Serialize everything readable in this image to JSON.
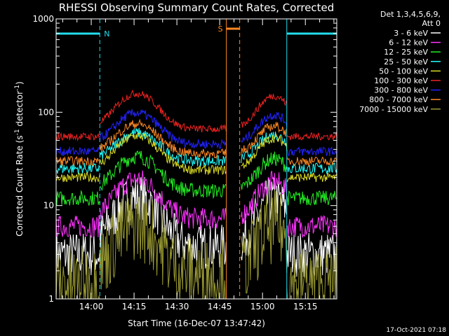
{
  "chart_data": {
    "type": "line",
    "title": "RHESSI Observing Summary Count Rates, Corrected",
    "xlabel": "Start Time (16-Dec-07 13:47:42)",
    "ylabel": "Corrected Count Rate (s⁻¹ detector⁻¹)",
    "ylabel_parts": {
      "main": "Corrected Count Rate (s",
      "exp1": "-1",
      "mid": " detector",
      "exp2": "-1",
      "end": ")"
    },
    "yscale": "log",
    "ylim": [
      1,
      1000
    ],
    "xlim": [
      "13:47:42",
      "15:26:00"
    ],
    "xticks": [
      "14:00",
      "14:15",
      "14:30",
      "14:45",
      "15:00",
      "15:15"
    ],
    "yticks": [
      "1",
      "10",
      "100",
      "1000"
    ],
    "legend_header": [
      "Det 1,3,4,5,6,9,",
      "Att 0"
    ],
    "series": [
      {
        "name": "3 - 6 keV",
        "color": "#ffffff"
      },
      {
        "name": "6 - 12 keV",
        "color": "#ff33ff"
      },
      {
        "name": "12 - 25 keV",
        "color": "#22ee22"
      },
      {
        "name": "25 - 50 keV",
        "color": "#22ffff"
      },
      {
        "name": "50 - 100 keV",
        "color": "#dddd22"
      },
      {
        "name": "100 - 300 keV",
        "color": "#ee2222"
      },
      {
        "name": "300 - 800 keV",
        "color": "#2222ff"
      },
      {
        "name": "800 - 7000 keV",
        "color": "#ff8822"
      },
      {
        "name": "7000 - 15000 keV",
        "color": "#999933"
      }
    ],
    "markers": [
      {
        "label": "N",
        "color": "#22ddee",
        "type": "night",
        "start": "13:47:42",
        "end": "14:03:00"
      },
      {
        "label": "",
        "color": "#22ddee",
        "type": "night",
        "start": "15:08:30",
        "end": "15:26:00"
      },
      {
        "label": "S",
        "color": "#ff8822",
        "type": "saa",
        "start": "14:47:20",
        "end": "14:52:00"
      }
    ],
    "grid": false,
    "legend_position": "right"
  },
  "footer": {
    "timestamp": "17-Oct-2021 07:18"
  }
}
